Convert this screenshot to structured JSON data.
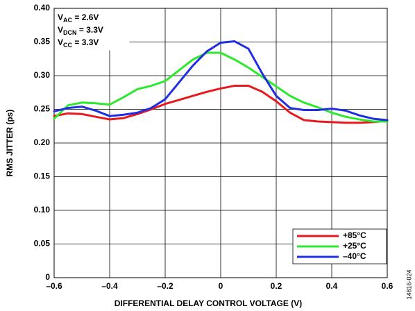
{
  "chart_data": {
    "type": "line",
    "x_label": "DIFFERENTIAL DELAY CONTROL VOLTAGE (V)",
    "y_label": "RMS JITTER (ps)",
    "annotations": [
      {
        "text": "V",
        "sub": "AC",
        "rest": " = 2.6V"
      },
      {
        "text": "V",
        "sub": "DCN",
        "rest": " = 3.3V"
      },
      {
        "text": "V",
        "sub": "CC",
        "rest": " = 3.3V"
      }
    ],
    "figure_id": "14816-024",
    "x": [
      -0.6,
      -0.55,
      -0.5,
      -0.45,
      -0.4,
      -0.35,
      -0.3,
      -0.25,
      -0.2,
      -0.15,
      -0.1,
      -0.05,
      0,
      0.05,
      0.1,
      0.15,
      0.2,
      0.25,
      0.3,
      0.35,
      0.4,
      0.45,
      0.5,
      0.55,
      0.6
    ],
    "series": [
      {
        "name": "+85°C",
        "color": "#e8191e",
        "values": [
          0.24,
          0.244,
          0.243,
          0.239,
          0.235,
          0.237,
          0.243,
          0.25,
          0.258,
          0.264,
          0.27,
          0.276,
          0.281,
          0.285,
          0.285,
          0.276,
          0.262,
          0.245,
          0.234,
          0.232,
          0.231,
          0.23,
          0.23,
          0.231,
          0.233
        ]
      },
      {
        "name": "+25°C",
        "color": "#2ee82e",
        "values": [
          0.236,
          0.256,
          0.26,
          0.259,
          0.257,
          0.268,
          0.28,
          0.285,
          0.292,
          0.308,
          0.324,
          0.334,
          0.334,
          0.324,
          0.312,
          0.298,
          0.284,
          0.27,
          0.26,
          0.253,
          0.245,
          0.239,
          0.235,
          0.232,
          0.232
        ]
      },
      {
        "name": "–40°C",
        "color": "#1f2ee0",
        "values": [
          0.247,
          0.252,
          0.254,
          0.248,
          0.24,
          0.242,
          0.245,
          0.252,
          0.265,
          0.29,
          0.315,
          0.336,
          0.349,
          0.351,
          0.34,
          0.303,
          0.27,
          0.252,
          0.249,
          0.249,
          0.251,
          0.248,
          0.241,
          0.236,
          0.234
        ]
      }
    ],
    "xlim": [
      -0.6,
      0.6
    ],
    "xticks": [
      {
        "value": -0.6,
        "label": "–0.6"
      },
      {
        "value": -0.4,
        "label": "–0.4"
      },
      {
        "value": -0.2,
        "label": "–0.2"
      },
      0,
      0.2,
      0.4,
      0.6
    ],
    "ylim": [
      0,
      0.4
    ],
    "yticks": [
      0,
      0.05,
      {
        "value": 0.1,
        "label": "0.10"
      },
      0.15,
      {
        "value": 0.2,
        "label": "0.20"
      },
      0.25,
      {
        "value": 0.3,
        "label": "0.30"
      },
      0.35,
      {
        "value": 0.4,
        "label": "0.40"
      }
    ],
    "grid": true,
    "legend": "lower right"
  }
}
